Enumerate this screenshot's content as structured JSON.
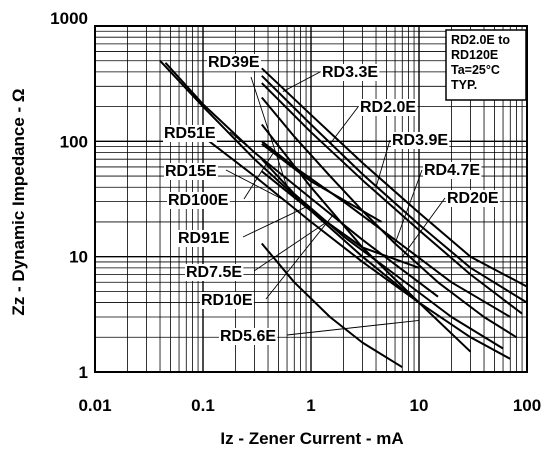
{
  "chart_data": {
    "type": "line",
    "title": "",
    "xlabel": "Iz - Zener Current - mA",
    "ylabel": "Zz - Dynamic Impedance - Ω",
    "x_scale": "log",
    "y_scale": "log",
    "xlim": [
      0.01,
      100
    ],
    "ylim": [
      1,
      1000
    ],
    "grid": true,
    "x_ticks": [
      "0.01",
      "0.1",
      "1",
      "10",
      "100"
    ],
    "y_ticks": [
      "1",
      "10",
      "100",
      "1000"
    ],
    "annotation": [
      "RD2.0E to",
      "RD120E",
      "Ta=25°C",
      "TYP."
    ],
    "series": [
      {
        "name": "RD39E",
        "x": [
          0.04,
          0.1,
          0.3,
          1,
          3,
          10
        ],
        "y": [
          500,
          200,
          70,
          25,
          10,
          4
        ]
      },
      {
        "name": "RD51E",
        "x": [
          0.045,
          0.1,
          0.3,
          1,
          3,
          15
        ],
        "y": [
          480,
          210,
          80,
          32,
          14,
          4.5
        ]
      },
      {
        "name": "RD3.3E",
        "x": [
          0.35,
          1,
          3,
          10,
          30,
          100
        ],
        "y": [
          430,
          170,
          65,
          24,
          10,
          5.5
        ]
      },
      {
        "name": "RD2.0E",
        "x": [
          0.35,
          1,
          3,
          10,
          30,
          100
        ],
        "y": [
          370,
          140,
          52,
          19,
          8,
          4
        ]
      },
      {
        "name": "RD3.9E",
        "x": [
          0.35,
          1,
          3,
          10,
          30,
          90
        ],
        "y": [
          320,
          120,
          46,
          17,
          7,
          3.2
        ]
      },
      {
        "name": "RD4.7E",
        "x": [
          0.35,
          0.7,
          1.5,
          3,
          6,
          15,
          40,
          80
        ],
        "y": [
          240,
          110,
          50,
          25,
          13,
          6,
          3,
          2
        ]
      },
      {
        "name": "RD20E",
        "x": [
          0.35,
          0.7,
          2,
          6,
          20,
          70
        ],
        "y": [
          100,
          60,
          30,
          14,
          6,
          3
        ]
      },
      {
        "name": "RD15E",
        "x": [
          0.1,
          0.3,
          1,
          3,
          10,
          30,
          70
        ],
        "y": [
          110,
          50,
          20,
          9,
          4,
          2,
          1.3
        ]
      },
      {
        "name": "RD100E",
        "x": [
          0.35,
          1,
          4.5
        ],
        "y": [
          95,
          45,
          20
        ]
      },
      {
        "name": "RD91E",
        "x": [
          0.35,
          1,
          3,
          10
        ],
        "y": [
          55,
          25,
          12,
          8
        ]
      },
      {
        "name": "RD7.5E",
        "x": [
          0.35,
          0.7,
          2,
          6,
          20,
          60
        ],
        "y": [
          70,
          35,
          15,
          7,
          3,
          1.6
        ]
      },
      {
        "name": "RD10E",
        "x": [
          0.35,
          1,
          3,
          10,
          30
        ],
        "y": [
          140,
          40,
          12,
          4,
          1.5
        ]
      },
      {
        "name": "RD5.6E",
        "x": [
          0.35,
          0.7,
          1.5,
          3,
          7
        ],
        "y": [
          13,
          6,
          3,
          1.8,
          1.1
        ]
      }
    ]
  }
}
